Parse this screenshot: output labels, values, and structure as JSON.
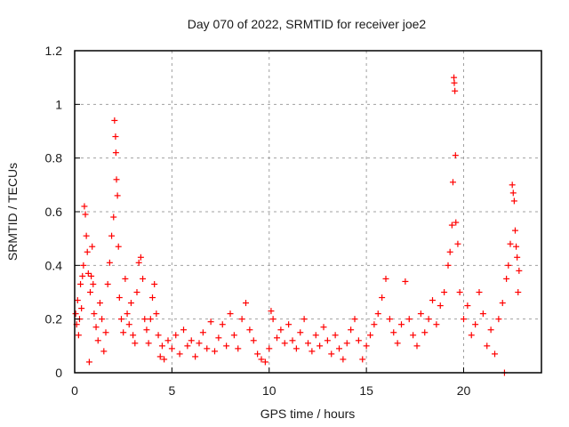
{
  "chart_data": {
    "type": "scatter",
    "title": "Day 070 of 2022, SRMTID for receiver joe2",
    "xlabel": "GPS time / hours",
    "ylabel": "SRMTID / TECUs",
    "xlim": [
      0,
      24
    ],
    "ylim": [
      0,
      1.2
    ],
    "xticks": [
      "0",
      "5",
      "10",
      "15",
      "20"
    ],
    "xtick_values": [
      0,
      5,
      10,
      15,
      20
    ],
    "yticks": [
      "0",
      "0.2",
      "0.4",
      "0.6",
      "0.8",
      "1",
      "1.2"
    ],
    "ytick_values": [
      0,
      0.2,
      0.4,
      0.6,
      0.8,
      1.0,
      1.2
    ],
    "grid": true,
    "marker": "plus",
    "color": "#ff0000",
    "series": [
      {
        "name": "SRMTID",
        "points": [
          [
            0.05,
            0.22
          ],
          [
            0.1,
            0.18
          ],
          [
            0.15,
            0.27
          ],
          [
            0.2,
            0.14
          ],
          [
            0.25,
            0.2
          ],
          [
            0.3,
            0.33
          ],
          [
            0.35,
            0.24
          ],
          [
            0.4,
            0.36
          ],
          [
            0.45,
            0.4
          ],
          [
            0.5,
            0.62
          ],
          [
            0.55,
            0.59
          ],
          [
            0.6,
            0.51
          ],
          [
            0.65,
            0.45
          ],
          [
            0.7,
            0.37
          ],
          [
            0.75,
            0.04
          ],
          [
            0.8,
            0.3
          ],
          [
            0.85,
            0.36
          ],
          [
            0.9,
            0.47
          ],
          [
            0.95,
            0.33
          ],
          [
            1.0,
            0.22
          ],
          [
            1.1,
            0.17
          ],
          [
            1.2,
            0.12
          ],
          [
            1.3,
            0.26
          ],
          [
            1.4,
            0.2
          ],
          [
            1.5,
            0.08
          ],
          [
            1.6,
            0.15
          ],
          [
            1.7,
            0.33
          ],
          [
            1.8,
            0.41
          ],
          [
            1.9,
            0.51
          ],
          [
            2.0,
            0.58
          ],
          [
            2.05,
            0.94
          ],
          [
            2.1,
            0.88
          ],
          [
            2.12,
            0.82
          ],
          [
            2.15,
            0.72
          ],
          [
            2.2,
            0.66
          ],
          [
            2.25,
            0.47
          ],
          [
            2.3,
            0.28
          ],
          [
            2.4,
            0.2
          ],
          [
            2.5,
            0.15
          ],
          [
            2.6,
            0.35
          ],
          [
            2.7,
            0.22
          ],
          [
            2.8,
            0.18
          ],
          [
            2.9,
            0.26
          ],
          [
            3.0,
            0.14
          ],
          [
            3.1,
            0.11
          ],
          [
            3.2,
            0.3
          ],
          [
            3.3,
            0.41
          ],
          [
            3.4,
            0.43
          ],
          [
            3.5,
            0.35
          ],
          [
            3.6,
            0.2
          ],
          [
            3.7,
            0.16
          ],
          [
            3.8,
            0.11
          ],
          [
            3.9,
            0.2
          ],
          [
            4.0,
            0.28
          ],
          [
            4.1,
            0.33
          ],
          [
            4.2,
            0.22
          ],
          [
            4.3,
            0.14
          ],
          [
            4.4,
            0.06
          ],
          [
            4.5,
            0.1
          ],
          [
            4.6,
            0.05
          ],
          [
            4.8,
            0.12
          ],
          [
            5.0,
            0.09
          ],
          [
            5.2,
            0.14
          ],
          [
            5.4,
            0.07
          ],
          [
            5.6,
            0.16
          ],
          [
            5.8,
            0.1
          ],
          [
            6.0,
            0.12
          ],
          [
            6.2,
            0.06
          ],
          [
            6.4,
            0.11
          ],
          [
            6.6,
            0.15
          ],
          [
            6.8,
            0.09
          ],
          [
            7.0,
            0.19
          ],
          [
            7.2,
            0.08
          ],
          [
            7.4,
            0.13
          ],
          [
            7.6,
            0.18
          ],
          [
            7.8,
            0.1
          ],
          [
            8.0,
            0.22
          ],
          [
            8.2,
            0.14
          ],
          [
            8.4,
            0.09
          ],
          [
            8.6,
            0.2
          ],
          [
            8.8,
            0.26
          ],
          [
            9.0,
            0.16
          ],
          [
            9.2,
            0.12
          ],
          [
            9.4,
            0.07
          ],
          [
            9.6,
            0.05
          ],
          [
            9.8,
            0.04
          ],
          [
            10.0,
            0.09
          ],
          [
            10.1,
            0.23
          ],
          [
            10.2,
            0.2
          ],
          [
            10.4,
            0.13
          ],
          [
            10.6,
            0.16
          ],
          [
            10.8,
            0.11
          ],
          [
            11.0,
            0.18
          ],
          [
            11.2,
            0.12
          ],
          [
            11.4,
            0.09
          ],
          [
            11.6,
            0.15
          ],
          [
            11.8,
            0.2
          ],
          [
            12.0,
            0.11
          ],
          [
            12.2,
            0.08
          ],
          [
            12.4,
            0.14
          ],
          [
            12.6,
            0.1
          ],
          [
            12.8,
            0.17
          ],
          [
            13.0,
            0.12
          ],
          [
            13.2,
            0.07
          ],
          [
            13.4,
            0.14
          ],
          [
            13.6,
            0.09
          ],
          [
            13.8,
            0.05
          ],
          [
            14.0,
            0.11
          ],
          [
            14.2,
            0.16
          ],
          [
            14.4,
            0.2
          ],
          [
            14.6,
            0.12
          ],
          [
            14.8,
            0.05
          ],
          [
            15.0,
            0.1
          ],
          [
            15.2,
            0.14
          ],
          [
            15.4,
            0.18
          ],
          [
            15.6,
            0.22
          ],
          [
            15.8,
            0.28
          ],
          [
            16.0,
            0.35
          ],
          [
            16.2,
            0.2
          ],
          [
            16.4,
            0.15
          ],
          [
            16.6,
            0.11
          ],
          [
            16.8,
            0.18
          ],
          [
            17.0,
            0.34
          ],
          [
            17.2,
            0.2
          ],
          [
            17.4,
            0.14
          ],
          [
            17.6,
            0.1
          ],
          [
            17.8,
            0.22
          ],
          [
            18.0,
            0.15
          ],
          [
            18.2,
            0.2
          ],
          [
            18.4,
            0.27
          ],
          [
            18.6,
            0.18
          ],
          [
            18.8,
            0.25
          ],
          [
            19.0,
            0.3
          ],
          [
            19.2,
            0.4
          ],
          [
            19.3,
            0.45
          ],
          [
            19.4,
            0.55
          ],
          [
            19.45,
            0.71
          ],
          [
            19.5,
            1.1
          ],
          [
            19.52,
            1.08
          ],
          [
            19.55,
            1.05
          ],
          [
            19.58,
            0.81
          ],
          [
            19.6,
            0.56
          ],
          [
            19.7,
            0.48
          ],
          [
            19.8,
            0.3
          ],
          [
            20.0,
            0.2
          ],
          [
            20.2,
            0.25
          ],
          [
            20.4,
            0.14
          ],
          [
            20.6,
            0.18
          ],
          [
            20.8,
            0.3
          ],
          [
            21.0,
            0.22
          ],
          [
            21.2,
            0.1
          ],
          [
            21.4,
            0.16
          ],
          [
            21.6,
            0.07
          ],
          [
            21.8,
            0.2
          ],
          [
            22.0,
            0.26
          ],
          [
            22.1,
            0.0
          ],
          [
            22.2,
            0.35
          ],
          [
            22.3,
            0.4
          ],
          [
            22.4,
            0.48
          ],
          [
            22.5,
            0.7
          ],
          [
            22.55,
            0.67
          ],
          [
            22.6,
            0.64
          ],
          [
            22.65,
            0.53
          ],
          [
            22.7,
            0.47
          ],
          [
            22.75,
            0.43
          ],
          [
            22.8,
            0.3
          ],
          [
            22.85,
            0.38
          ]
        ]
      }
    ]
  }
}
